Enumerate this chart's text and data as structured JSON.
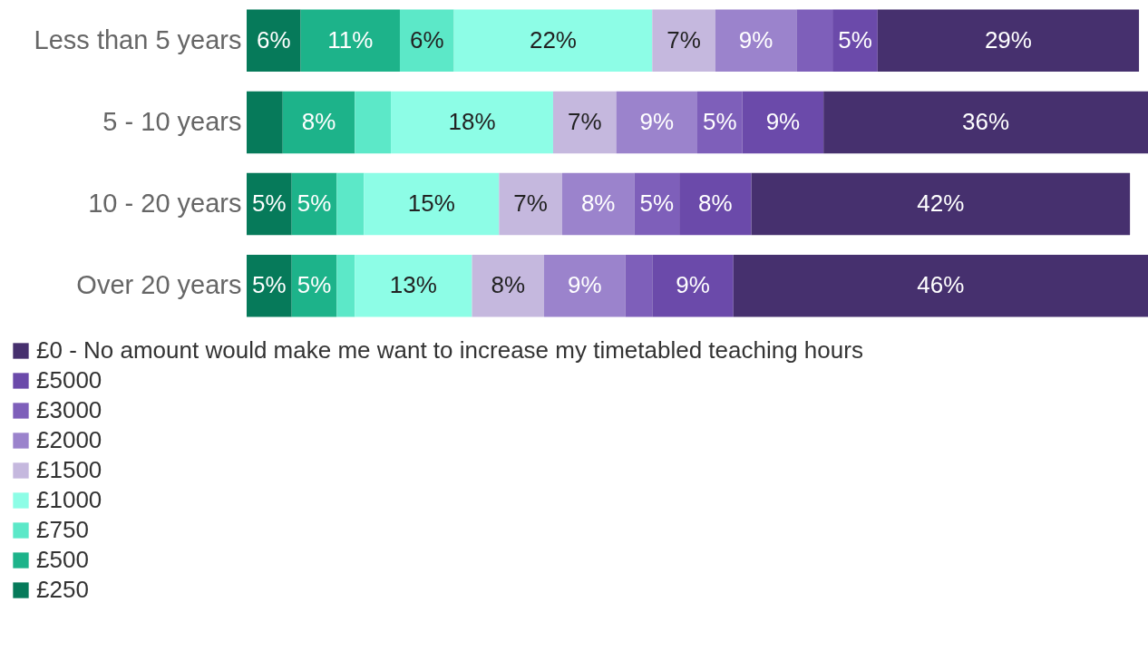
{
  "chart_data": {
    "type": "bar",
    "orientation": "horizontal",
    "stacked": true,
    "categories": [
      "Less than 5 years",
      "5 - 10 years",
      "10 - 20 years",
      "Over 20 years"
    ],
    "legend": "bottom left",
    "xlim": [
      0,
      100
    ],
    "tick_labels": "y",
    "series": [
      {
        "name": "£250",
        "color": "#067a5a",
        "values": [
          6,
          4,
          5,
          5
        ],
        "value_labels": [
          "6%",
          null,
          "5%",
          "5%"
        ]
      },
      {
        "name": "£500",
        "color": "#1db38a",
        "values": [
          11,
          8,
          5,
          5
        ],
        "value_labels": [
          "11%",
          "8%",
          "5%",
          "5%"
        ]
      },
      {
        "name": "£750",
        "color": "#5ce8c8",
        "values": [
          6,
          4,
          3,
          2
        ],
        "value_labels": [
          "6%",
          null,
          null,
          null
        ]
      },
      {
        "name": "£1000",
        "color": "#8dfde6",
        "values": [
          22,
          18,
          15,
          13
        ],
        "value_labels": [
          "22%",
          "18%",
          "15%",
          "13%"
        ]
      },
      {
        "name": "£1500",
        "color": "#c5b8de",
        "values": [
          7,
          7,
          7,
          8
        ],
        "value_labels": [
          "7%",
          "7%",
          "7%",
          "8%"
        ]
      },
      {
        "name": "£2000",
        "color": "#9b83cc",
        "values": [
          9,
          9,
          8,
          9
        ],
        "value_labels": [
          "9%",
          "9%",
          "8%",
          "9%"
        ]
      },
      {
        "name": "£3000",
        "color": "#7e5fba",
        "values": [
          4,
          5,
          5,
          3
        ],
        "value_labels": [
          null,
          "5%",
          "5%",
          null
        ]
      },
      {
        "name": "£5000",
        "color": "#6b4aaa",
        "values": [
          5,
          9,
          8,
          9
        ],
        "value_labels": [
          "5%",
          "9%",
          "8%",
          "9%"
        ]
      },
      {
        "name": "£0 - No amount would make me want to increase my timetabled teaching hours",
        "color": "#46306e",
        "values": [
          29,
          36,
          42,
          46
        ],
        "value_labels": [
          "29%",
          "36%",
          "42%",
          "46%"
        ]
      }
    ]
  }
}
